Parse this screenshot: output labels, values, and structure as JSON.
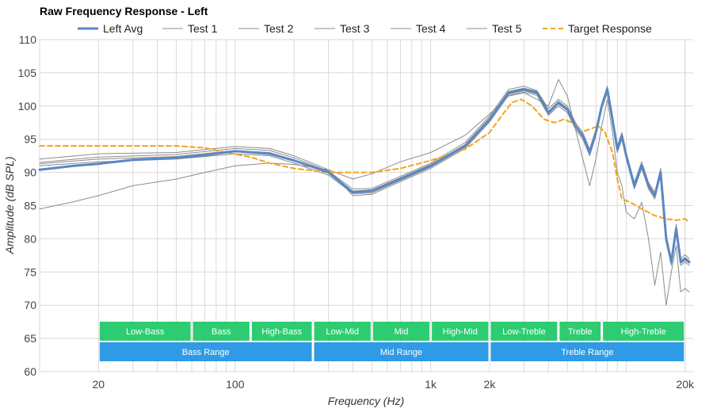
{
  "chart_data": {
    "type": "line",
    "title": "Raw Frequency Response - Left",
    "xlabel": "Frequency (Hz)",
    "ylabel": "Amplitude (dB SPL)",
    "xscale": "log",
    "xlim": [
      10,
      22000
    ],
    "ylim": [
      60,
      110
    ],
    "grid": true,
    "legend_position": "top",
    "x_tick_labels": [
      {
        "value": 20,
        "label": "20"
      },
      {
        "value": 100,
        "label": "100"
      },
      {
        "value": 1000,
        "label": "1k"
      },
      {
        "value": 2000,
        "label": "2k"
      },
      {
        "value": 20000,
        "label": "20k"
      }
    ],
    "y_ticks": [
      60,
      65,
      70,
      75,
      80,
      85,
      90,
      95,
      100,
      105,
      110
    ],
    "colors": {
      "avg": "#5a87c4",
      "tests": "#8c8c8c",
      "target": "#f5a31a",
      "band": "#2ecc71",
      "range": "#2f9be6",
      "grid": "#d9d9d9"
    },
    "series": [
      {
        "name": "Left Avg",
        "style": "avg",
        "points": [
          [
            10,
            90.4
          ],
          [
            15,
            91.0
          ],
          [
            20,
            91.3
          ],
          [
            30,
            91.9
          ],
          [
            50,
            92.2
          ],
          [
            70,
            92.6
          ],
          [
            100,
            93.2
          ],
          [
            150,
            92.8
          ],
          [
            200,
            91.8
          ],
          [
            300,
            90.0
          ],
          [
            400,
            87.0
          ],
          [
            500,
            87.2
          ],
          [
            700,
            89.0
          ],
          [
            1000,
            91.0
          ],
          [
            1500,
            94.0
          ],
          [
            2000,
            98.0
          ],
          [
            2500,
            102.0
          ],
          [
            3000,
            102.5
          ],
          [
            3500,
            102.0
          ],
          [
            4000,
            99.0
          ],
          [
            4500,
            100.5
          ],
          [
            5000,
            99.5
          ],
          [
            5500,
            97.0
          ],
          [
            6000,
            95.5
          ],
          [
            6500,
            93.0
          ],
          [
            7000,
            96.0
          ],
          [
            7500,
            100.0
          ],
          [
            8000,
            102.5
          ],
          [
            8500,
            98.0
          ],
          [
            9000,
            93.5
          ],
          [
            9500,
            95.5
          ],
          [
            10000,
            92.5
          ],
          [
            11000,
            88.0
          ],
          [
            12000,
            91.0
          ],
          [
            13000,
            88.0
          ],
          [
            14000,
            86.5
          ],
          [
            15000,
            90.0
          ],
          [
            16000,
            80.0
          ],
          [
            17000,
            76.5
          ],
          [
            18000,
            81.5
          ],
          [
            19000,
            76.5
          ],
          [
            20000,
            77.0
          ],
          [
            21000,
            76.5
          ]
        ]
      },
      {
        "name": "Test 1",
        "style": "test",
        "points": [
          [
            10,
            91.5
          ],
          [
            20,
            92.3
          ],
          [
            50,
            92.7
          ],
          [
            100,
            93.6
          ],
          [
            150,
            93.3
          ],
          [
            200,
            92.2
          ],
          [
            300,
            90.2
          ],
          [
            400,
            87.5
          ],
          [
            500,
            87.6
          ],
          [
            700,
            89.4
          ],
          [
            1000,
            91.4
          ],
          [
            1500,
            94.5
          ],
          [
            2000,
            98.5
          ],
          [
            2500,
            102.5
          ],
          [
            3000,
            103.0
          ],
          [
            3500,
            102.3
          ],
          [
            4000,
            99.6
          ],
          [
            4500,
            101.0
          ],
          [
            5000,
            100.0
          ],
          [
            5500,
            97.5
          ],
          [
            6000,
            96.0
          ],
          [
            6500,
            93.5
          ],
          [
            7000,
            96.5
          ],
          [
            7500,
            100.4
          ],
          [
            8000,
            103.0
          ],
          [
            8500,
            98.4
          ],
          [
            9000,
            94.0
          ],
          [
            9500,
            96.0
          ],
          [
            10000,
            93.0
          ],
          [
            11000,
            88.5
          ],
          [
            12000,
            91.6
          ],
          [
            13000,
            88.5
          ],
          [
            14000,
            87.0
          ],
          [
            15000,
            90.6
          ],
          [
            16000,
            80.6
          ],
          [
            17000,
            77.0
          ],
          [
            18000,
            82.2
          ],
          [
            19000,
            77.0
          ],
          [
            20000,
            77.6
          ],
          [
            21000,
            77.0
          ]
        ]
      },
      {
        "name": "Test 2",
        "style": "test",
        "points": [
          [
            10,
            92.0
          ],
          [
            20,
            92.8
          ],
          [
            50,
            93.0
          ],
          [
            100,
            93.9
          ],
          [
            150,
            93.6
          ],
          [
            200,
            92.5
          ],
          [
            300,
            90.4
          ],
          [
            400,
            86.5
          ],
          [
            500,
            86.7
          ],
          [
            700,
            88.6
          ],
          [
            1000,
            90.6
          ],
          [
            1500,
            93.6
          ],
          [
            2000,
            97.6
          ],
          [
            2500,
            101.6
          ],
          [
            3000,
            102.1
          ],
          [
            3500,
            101.6
          ],
          [
            4000,
            98.6
          ],
          [
            4500,
            100.0
          ],
          [
            5000,
            99.0
          ],
          [
            5500,
            96.5
          ],
          [
            6000,
            95.0
          ],
          [
            6500,
            92.5
          ],
          [
            7000,
            95.5
          ],
          [
            7500,
            99.6
          ],
          [
            8000,
            102.0
          ],
          [
            8500,
            97.6
          ],
          [
            9000,
            93.0
          ],
          [
            9500,
            95.0
          ],
          [
            10000,
            92.0
          ],
          [
            11000,
            87.5
          ],
          [
            12000,
            90.6
          ],
          [
            13000,
            87.5
          ],
          [
            14000,
            86.0
          ],
          [
            15000,
            89.6
          ],
          [
            16000,
            79.6
          ],
          [
            17000,
            76.0
          ],
          [
            18000,
            81.0
          ],
          [
            19000,
            76.0
          ],
          [
            20000,
            76.5
          ],
          [
            21000,
            76.0
          ]
        ]
      },
      {
        "name": "Test 3",
        "style": "test",
        "points": [
          [
            10,
            91.0
          ],
          [
            20,
            91.6
          ],
          [
            50,
            92.0
          ],
          [
            100,
            92.8
          ],
          [
            150,
            92.5
          ],
          [
            200,
            91.4
          ],
          [
            300,
            89.6
          ],
          [
            400,
            86.8
          ],
          [
            500,
            86.9
          ],
          [
            700,
            88.8
          ],
          [
            1000,
            90.8
          ],
          [
            1500,
            93.8
          ],
          [
            2000,
            97.8
          ],
          [
            2500,
            101.8
          ],
          [
            3000,
            102.3
          ],
          [
            3500,
            101.8
          ],
          [
            4000,
            98.8
          ],
          [
            4500,
            100.3
          ],
          [
            5000,
            99.3
          ],
          [
            5500,
            96.8
          ],
          [
            6000,
            95.3
          ],
          [
            6500,
            92.8
          ],
          [
            7000,
            95.8
          ],
          [
            7500,
            99.8
          ],
          [
            8000,
            102.3
          ],
          [
            8500,
            97.8
          ],
          [
            9000,
            93.3
          ],
          [
            9500,
            95.3
          ],
          [
            10000,
            92.3
          ],
          [
            11000,
            87.8
          ],
          [
            12000,
            90.8
          ],
          [
            13000,
            87.8
          ],
          [
            14000,
            86.3
          ],
          [
            15000,
            89.8
          ],
          [
            16000,
            79.8
          ],
          [
            17000,
            76.3
          ],
          [
            18000,
            81.3
          ],
          [
            19000,
            76.3
          ],
          [
            20000,
            76.8
          ],
          [
            21000,
            76.3
          ]
        ]
      },
      {
        "name": "Test 4",
        "style": "test",
        "points": [
          [
            10,
            91.3
          ],
          [
            20,
            92.0
          ],
          [
            50,
            92.4
          ],
          [
            100,
            93.3
          ],
          [
            150,
            93.0
          ],
          [
            200,
            91.9
          ],
          [
            300,
            90.0
          ],
          [
            400,
            87.2
          ],
          [
            500,
            87.4
          ],
          [
            700,
            89.2
          ],
          [
            1000,
            91.2
          ],
          [
            1500,
            94.2
          ],
          [
            2000,
            98.2
          ],
          [
            2500,
            102.2
          ],
          [
            3000,
            102.7
          ],
          [
            3500,
            102.2
          ],
          [
            4000,
            99.2
          ],
          [
            4500,
            100.7
          ],
          [
            5000,
            99.7
          ],
          [
            5500,
            97.2
          ],
          [
            6000,
            95.7
          ],
          [
            6500,
            93.2
          ],
          [
            7000,
            96.2
          ],
          [
            7500,
            100.2
          ],
          [
            8000,
            102.7
          ],
          [
            8500,
            98.2
          ],
          [
            9000,
            93.7
          ],
          [
            9500,
            95.7
          ],
          [
            10000,
            92.7
          ],
          [
            11000,
            88.2
          ],
          [
            12000,
            91.2
          ],
          [
            13000,
            88.2
          ],
          [
            14000,
            86.7
          ],
          [
            15000,
            90.2
          ],
          [
            16000,
            80.2
          ],
          [
            17000,
            76.7
          ],
          [
            18000,
            81.7
          ],
          [
            19000,
            76.7
          ],
          [
            20000,
            77.2
          ],
          [
            21000,
            76.7
          ]
        ]
      },
      {
        "name": "Test 5",
        "style": "test",
        "points": [
          [
            10,
            84.5
          ],
          [
            15,
            85.6
          ],
          [
            20,
            86.5
          ],
          [
            30,
            88.0
          ],
          [
            50,
            89.0
          ],
          [
            70,
            90.0
          ],
          [
            100,
            91.0
          ],
          [
            150,
            91.4
          ],
          [
            200,
            91.2
          ],
          [
            300,
            90.4
          ],
          [
            400,
            89.0
          ],
          [
            500,
            89.8
          ],
          [
            700,
            91.6
          ],
          [
            1000,
            93.0
          ],
          [
            1500,
            95.6
          ],
          [
            2000,
            98.8
          ],
          [
            2500,
            101.5
          ],
          [
            3000,
            102.0
          ],
          [
            3500,
            101.0
          ],
          [
            4000,
            100.0
          ],
          [
            4500,
            104.0
          ],
          [
            5000,
            101.5
          ],
          [
            5500,
            96.5
          ],
          [
            6000,
            92.0
          ],
          [
            6500,
            88.0
          ],
          [
            7000,
            92.0
          ],
          [
            7500,
            97.0
          ],
          [
            8000,
            101.0
          ],
          [
            8500,
            96.0
          ],
          [
            9000,
            90.0
          ],
          [
            9500,
            88.0
          ],
          [
            10000,
            84.0
          ],
          [
            11000,
            83.0
          ],
          [
            12000,
            85.5
          ],
          [
            13000,
            80.0
          ],
          [
            14000,
            73.0
          ],
          [
            15000,
            78.0
          ],
          [
            16000,
            70.0
          ],
          [
            17000,
            75.0
          ],
          [
            18000,
            79.0
          ],
          [
            19000,
            72.0
          ],
          [
            20000,
            72.5
          ],
          [
            21000,
            72.0
          ]
        ]
      },
      {
        "name": "Target Response",
        "style": "target",
        "points": [
          [
            10,
            94.0
          ],
          [
            20,
            94.0
          ],
          [
            30,
            94.0
          ],
          [
            50,
            94.0
          ],
          [
            70,
            93.7
          ],
          [
            90,
            93.0
          ],
          [
            120,
            92.3
          ],
          [
            150,
            91.4
          ],
          [
            200,
            90.6
          ],
          [
            300,
            90.0
          ],
          [
            500,
            90.0
          ],
          [
            700,
            90.6
          ],
          [
            1000,
            91.8
          ],
          [
            1500,
            93.5
          ],
          [
            2000,
            96.0
          ],
          [
            2300,
            98.5
          ],
          [
            2600,
            100.5
          ],
          [
            2900,
            101.0
          ],
          [
            3300,
            100.0
          ],
          [
            3800,
            98.0
          ],
          [
            4300,
            97.5
          ],
          [
            4800,
            98.0
          ],
          [
            5300,
            97.5
          ],
          [
            5800,
            96.0
          ],
          [
            6500,
            96.5
          ],
          [
            7200,
            97.0
          ],
          [
            7800,
            96.0
          ],
          [
            8500,
            93.0
          ],
          [
            9000,
            89.0
          ],
          [
            9500,
            86.0
          ],
          [
            10500,
            85.5
          ],
          [
            12000,
            84.5
          ],
          [
            14000,
            83.5
          ],
          [
            16000,
            83.0
          ],
          [
            18000,
            82.8
          ],
          [
            20000,
            83.0
          ],
          [
            21000,
            82.5
          ]
        ]
      }
    ],
    "frequency_bands": [
      {
        "label": "Low-Bass",
        "from": 20,
        "to": 60
      },
      {
        "label": "Bass",
        "from": 60,
        "to": 120
      },
      {
        "label": "High-Bass",
        "from": 120,
        "to": 250
      },
      {
        "label": "Low-Mid",
        "from": 250,
        "to": 500
      },
      {
        "label": "Mid",
        "from": 500,
        "to": 1000
      },
      {
        "label": "High-Mid",
        "from": 1000,
        "to": 2000
      },
      {
        "label": "Low-Treble",
        "from": 2000,
        "to": 4500
      },
      {
        "label": "Treble",
        "from": 4500,
        "to": 7500
      },
      {
        "label": "High-Treble",
        "from": 7500,
        "to": 20000
      }
    ],
    "ranges": [
      {
        "label": "Bass Range",
        "from": 20,
        "to": 250
      },
      {
        "label": "Mid Range",
        "from": 250,
        "to": 2000
      },
      {
        "label": "Treble Range",
        "from": 2000,
        "to": 20000
      }
    ]
  }
}
